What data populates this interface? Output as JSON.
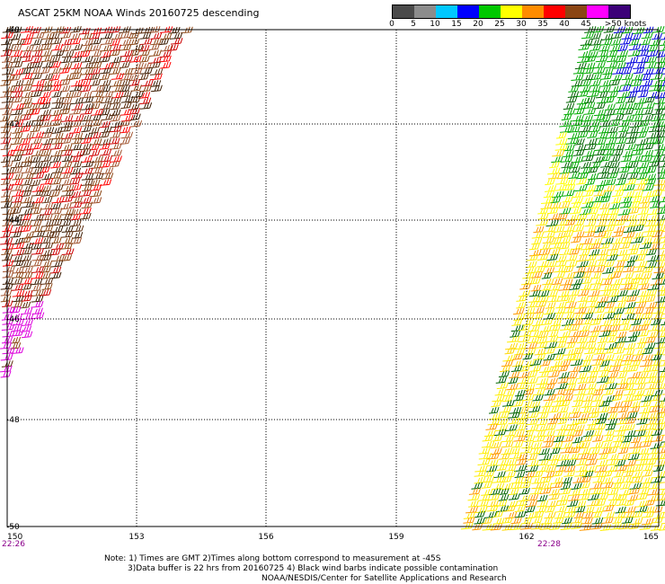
{
  "title": "ASCAT 25KM NOAA Winds 20160725 descending",
  "legend": {
    "labels": [
      "0",
      "5",
      "10",
      "15",
      "20",
      "25",
      "30",
      "35",
      "40",
      "45",
      ">50 knots"
    ],
    "colors": [
      "#4a4a4a",
      "#8c8c8c",
      "#00c8ff",
      "#0000ff",
      "#00c800",
      "#ffff00",
      "#ff8c00",
      "#ff0000",
      "#8b4513",
      "#ff00ff",
      "#3c0078"
    ]
  },
  "axes": {
    "lat_labels": [
      "-40",
      "-42",
      "-44",
      "-46",
      "-48",
      "-50"
    ],
    "lon_labels": [
      "150",
      "153",
      "156",
      "159",
      "162",
      "165"
    ]
  },
  "times": {
    "left": "22:26",
    "right": "22:28"
  },
  "notes": {
    "line1": "Note: 1) Times are GMT 2)Times along bottom correspond to measurement at -45S",
    "line2": "3)Data buffer is 22 hrs from 20160725 4) Black wind barbs indicate possible contamination",
    "credit": "NOAA/NESDIS/Center for Satellite Applications and Research"
  }
}
